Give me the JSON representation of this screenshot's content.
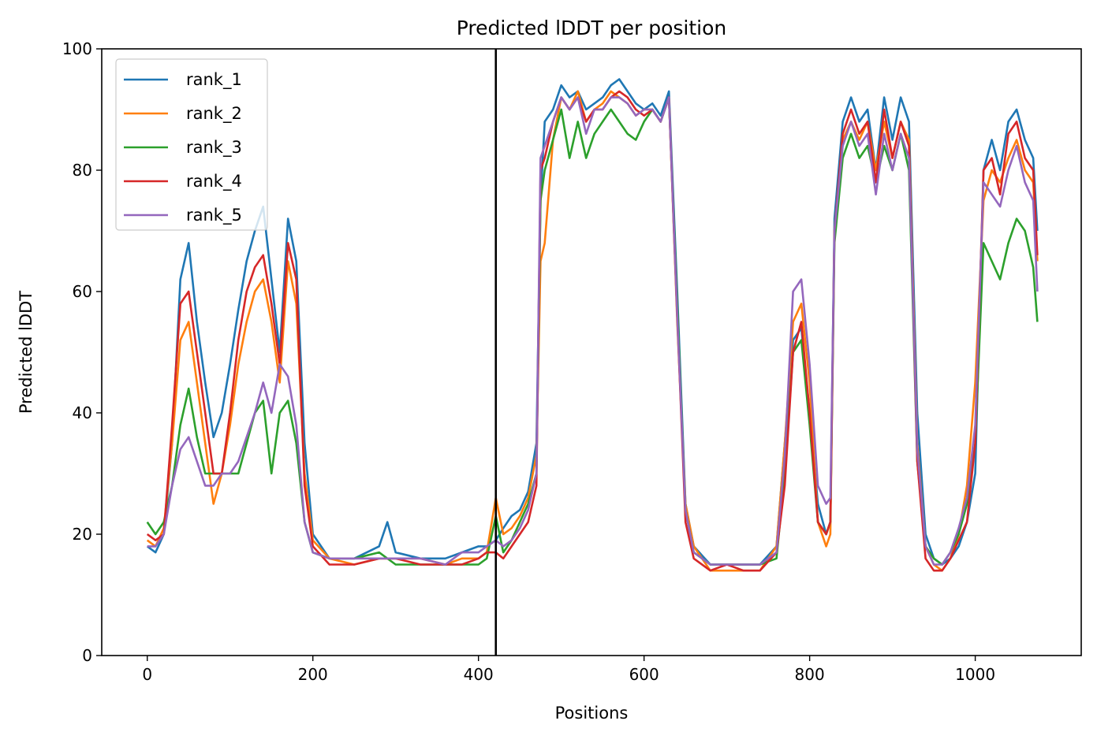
{
  "chart_data": {
    "type": "line",
    "title": "Predicted lDDT per position",
    "xlabel": "Positions",
    "ylabel": "Predicted lDDT",
    "xlim": [
      -55,
      1128
    ],
    "ylim": [
      0,
      100
    ],
    "xticks": [
      0,
      200,
      400,
      600,
      800,
      1000
    ],
    "yticks": [
      0,
      20,
      40,
      60,
      80,
      100
    ],
    "grid": false,
    "legend_position": "top-left",
    "vline_x": 421,
    "series": [
      {
        "name": "rank_1",
        "color": "#1f77b4",
        "x": [
          0,
          10,
          20,
          30,
          40,
          50,
          60,
          70,
          80,
          90,
          100,
          110,
          120,
          130,
          140,
          150,
          160,
          170,
          180,
          190,
          200,
          220,
          250,
          280,
          290,
          300,
          330,
          360,
          380,
          400,
          410,
          421,
          430,
          440,
          450,
          460,
          470,
          475,
          480,
          490,
          500,
          510,
          520,
          530,
          540,
          550,
          560,
          570,
          580,
          590,
          600,
          610,
          620,
          630,
          640,
          650,
          660,
          680,
          700,
          720,
          740,
          760,
          770,
          780,
          790,
          800,
          810,
          820,
          825,
          830,
          840,
          850,
          860,
          870,
          880,
          890,
          900,
          910,
          920,
          930,
          940,
          950,
          960,
          970,
          980,
          990,
          1000,
          1010,
          1020,
          1030,
          1040,
          1050,
          1060,
          1070,
          1075
        ],
        "y": [
          18,
          17,
          20,
          35,
          62,
          68,
          55,
          45,
          36,
          40,
          48,
          57,
          65,
          70,
          74,
          62,
          50,
          72,
          65,
          35,
          20,
          16,
          16,
          18,
          22,
          17,
          16,
          16,
          17,
          18,
          18,
          19,
          21,
          23,
          24,
          27,
          35,
          75,
          88,
          90,
          94,
          92,
          93,
          90,
          91,
          92,
          94,
          95,
          93,
          91,
          90,
          91,
          89,
          93,
          60,
          25,
          18,
          15,
          15,
          15,
          15,
          18,
          35,
          52,
          54,
          40,
          25,
          20,
          22,
          72,
          88,
          92,
          88,
          90,
          80,
          92,
          85,
          92,
          88,
          40,
          20,
          16,
          15,
          16,
          18,
          22,
          30,
          80,
          85,
          80,
          88,
          90,
          85,
          82,
          70
        ]
      },
      {
        "name": "rank_2",
        "color": "#ff7f0e",
        "x": [
          0,
          10,
          20,
          30,
          40,
          50,
          60,
          70,
          80,
          90,
          100,
          110,
          120,
          130,
          140,
          150,
          160,
          170,
          180,
          190,
          200,
          220,
          250,
          280,
          300,
          330,
          360,
          380,
          400,
          410,
          421,
          430,
          440,
          450,
          460,
          470,
          475,
          480,
          490,
          500,
          510,
          520,
          530,
          540,
          550,
          560,
          570,
          580,
          590,
          600,
          610,
          620,
          630,
          640,
          650,
          660,
          680,
          700,
          720,
          740,
          760,
          770,
          780,
          790,
          800,
          810,
          820,
          825,
          830,
          840,
          850,
          860,
          870,
          880,
          890,
          900,
          910,
          920,
          930,
          940,
          950,
          960,
          970,
          980,
          990,
          1000,
          1010,
          1020,
          1030,
          1040,
          1050,
          1060,
          1070,
          1075
        ],
        "y": [
          19,
          18,
          21,
          35,
          52,
          55,
          45,
          35,
          25,
          30,
          38,
          48,
          55,
          60,
          62,
          55,
          45,
          65,
          58,
          30,
          19,
          16,
          15,
          16,
          16,
          16,
          15,
          16,
          16,
          17,
          26,
          20,
          21,
          23,
          26,
          33,
          65,
          68,
          85,
          92,
          90,
          93,
          88,
          90,
          91,
          93,
          92,
          91,
          89,
          90,
          90,
          88,
          92,
          55,
          25,
          18,
          14,
          14,
          14,
          14,
          18,
          35,
          55,
          58,
          45,
          22,
          18,
          20,
          70,
          85,
          88,
          85,
          88,
          80,
          88,
          82,
          88,
          85,
          35,
          18,
          15,
          14,
          16,
          20,
          28,
          45,
          75,
          80,
          78,
          82,
          85,
          80,
          78,
          65
        ]
      },
      {
        "name": "rank_3",
        "color": "#2ca02c",
        "x": [
          0,
          10,
          20,
          30,
          40,
          50,
          60,
          70,
          80,
          90,
          100,
          110,
          120,
          130,
          140,
          150,
          160,
          170,
          180,
          190,
          200,
          220,
          250,
          280,
          300,
          330,
          360,
          380,
          400,
          410,
          421,
          430,
          440,
          450,
          460,
          470,
          475,
          480,
          490,
          500,
          510,
          520,
          530,
          540,
          550,
          560,
          570,
          580,
          590,
          600,
          610,
          620,
          630,
          640,
          650,
          660,
          680,
          700,
          720,
          740,
          760,
          770,
          780,
          790,
          800,
          810,
          820,
          825,
          830,
          840,
          850,
          860,
          870,
          880,
          890,
          900,
          910,
          920,
          930,
          940,
          950,
          960,
          970,
          980,
          990,
          1000,
          1010,
          1020,
          1030,
          1040,
          1050,
          1060,
          1070,
          1075
        ],
        "y": [
          22,
          20,
          22,
          28,
          38,
          44,
          36,
          30,
          30,
          30,
          30,
          30,
          35,
          40,
          42,
          30,
          40,
          42,
          35,
          22,
          17,
          16,
          16,
          17,
          15,
          15,
          15,
          15,
          15,
          16,
          23,
          17,
          19,
          22,
          25,
          30,
          75,
          80,
          85,
          90,
          82,
          88,
          82,
          86,
          88,
          90,
          88,
          86,
          85,
          88,
          90,
          88,
          92,
          58,
          24,
          17,
          15,
          15,
          15,
          15,
          16,
          30,
          50,
          52,
          38,
          22,
          20,
          22,
          68,
          82,
          86,
          82,
          84,
          78,
          84,
          80,
          86,
          80,
          32,
          18,
          16,
          15,
          17,
          20,
          25,
          35,
          68,
          65,
          62,
          68,
          72,
          70,
          64,
          55
        ]
      },
      {
        "name": "rank_4",
        "color": "#d62728",
        "x": [
          0,
          10,
          20,
          30,
          40,
          50,
          60,
          70,
          80,
          90,
          100,
          110,
          120,
          130,
          140,
          150,
          160,
          170,
          180,
          190,
          200,
          220,
          250,
          280,
          300,
          330,
          360,
          380,
          400,
          410,
          421,
          430,
          440,
          450,
          460,
          470,
          475,
          480,
          490,
          500,
          510,
          520,
          530,
          540,
          550,
          560,
          570,
          580,
          590,
          600,
          610,
          620,
          630,
          640,
          650,
          660,
          680,
          700,
          720,
          740,
          760,
          770,
          780,
          790,
          800,
          810,
          820,
          825,
          830,
          840,
          850,
          860,
          870,
          880,
          890,
          900,
          910,
          920,
          930,
          940,
          950,
          960,
          970,
          980,
          990,
          1000,
          1010,
          1020,
          1030,
          1040,
          1050,
          1060,
          1070,
          1075
        ],
        "y": [
          20,
          19,
          20,
          38,
          58,
          60,
          50,
          40,
          30,
          30,
          40,
          52,
          60,
          64,
          66,
          58,
          48,
          68,
          62,
          28,
          18,
          15,
          15,
          16,
          16,
          15,
          15,
          15,
          16,
          17,
          17,
          16,
          18,
          20,
          22,
          28,
          80,
          82,
          88,
          92,
          90,
          92,
          88,
          90,
          90,
          92,
          93,
          92,
          90,
          89,
          90,
          88,
          92,
          56,
          22,
          16,
          14,
          15,
          14,
          14,
          17,
          28,
          50,
          55,
          40,
          22,
          20,
          22,
          70,
          86,
          90,
          86,
          88,
          78,
          90,
          82,
          88,
          84,
          32,
          16,
          14,
          14,
          16,
          19,
          22,
          35,
          80,
          82,
          76,
          86,
          88,
          82,
          80,
          66
        ]
      },
      {
        "name": "rank_5",
        "color": "#9467bd",
        "x": [
          0,
          10,
          20,
          30,
          40,
          50,
          60,
          70,
          80,
          90,
          100,
          110,
          120,
          130,
          140,
          150,
          160,
          170,
          180,
          190,
          200,
          220,
          250,
          280,
          300,
          330,
          360,
          380,
          400,
          410,
          421,
          430,
          440,
          450,
          460,
          470,
          475,
          480,
          490,
          500,
          510,
          520,
          530,
          540,
          550,
          560,
          570,
          580,
          590,
          600,
          610,
          620,
          630,
          640,
          650,
          660,
          680,
          700,
          720,
          740,
          760,
          770,
          780,
          790,
          800,
          810,
          820,
          825,
          830,
          840,
          850,
          860,
          870,
          880,
          890,
          900,
          910,
          920,
          930,
          940,
          950,
          960,
          970,
          980,
          990,
          1000,
          1010,
          1020,
          1030,
          1040,
          1050,
          1060,
          1070,
          1075
        ],
        "y": [
          18,
          18,
          20,
          28,
          34,
          36,
          32,
          28,
          28,
          30,
          30,
          32,
          36,
          40,
          45,
          40,
          48,
          46,
          38,
          22,
          17,
          16,
          16,
          16,
          16,
          16,
          15,
          17,
          17,
          18,
          19,
          18,
          19,
          21,
          24,
          30,
          82,
          84,
          88,
          92,
          90,
          92,
          86,
          90,
          90,
          92,
          92,
          91,
          89,
          90,
          90,
          88,
          92,
          56,
          24,
          17,
          15,
          15,
          15,
          15,
          17,
          33,
          60,
          62,
          48,
          28,
          25,
          26,
          70,
          84,
          88,
          84,
          86,
          76,
          86,
          80,
          86,
          82,
          34,
          18,
          15,
          15,
          17,
          21,
          26,
          38,
          78,
          76,
          74,
          80,
          84,
          78,
          75,
          60
        ]
      }
    ]
  }
}
